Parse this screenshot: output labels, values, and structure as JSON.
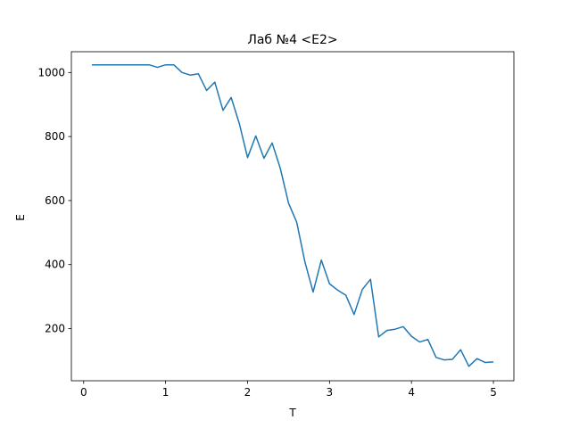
{
  "chart_data": {
    "type": "line",
    "title": "Лаб №4 <E2>",
    "xlabel": "T",
    "ylabel": "E",
    "xlim": [
      -0.15,
      5.25
    ],
    "ylim": [
      37,
      1065
    ],
    "xticks": [
      0,
      1,
      2,
      3,
      4,
      5
    ],
    "yticks": [
      200,
      400,
      600,
      800,
      1000
    ],
    "grid": false,
    "color": "#1f77b4",
    "series": [
      {
        "x": [
          0.1,
          0.2,
          0.3,
          0.4,
          0.5,
          0.6,
          0.7,
          0.8,
          0.9,
          1.0,
          1.1,
          1.2,
          1.3,
          1.4,
          1.5,
          1.6,
          1.7,
          1.8,
          1.9,
          2.0,
          2.1,
          2.2,
          2.3,
          2.4,
          2.5,
          2.6,
          2.7,
          2.8,
          2.9,
          3.0,
          3.1,
          3.2,
          3.3,
          3.4,
          3.5,
          3.6,
          3.7,
          3.8,
          3.9,
          4.0,
          4.1,
          4.2,
          4.3,
          4.4,
          4.5,
          4.6,
          4.7,
          4.8,
          4.9,
          5.0
        ],
        "values": [
          1024,
          1024,
          1024,
          1024,
          1024,
          1024,
          1024,
          1024,
          1016,
          1024,
          1024,
          1000,
          992,
          996,
          944,
          970,
          882,
          922,
          840,
          734,
          802,
          732,
          780,
          700,
          592,
          532,
          408,
          314,
          414,
          340,
          320,
          304,
          244,
          322,
          354,
          174,
          194,
          198,
          206,
          176,
          158,
          166,
          110,
          102,
          104,
          134,
          82,
          106,
          94,
          96
        ]
      }
    ]
  }
}
